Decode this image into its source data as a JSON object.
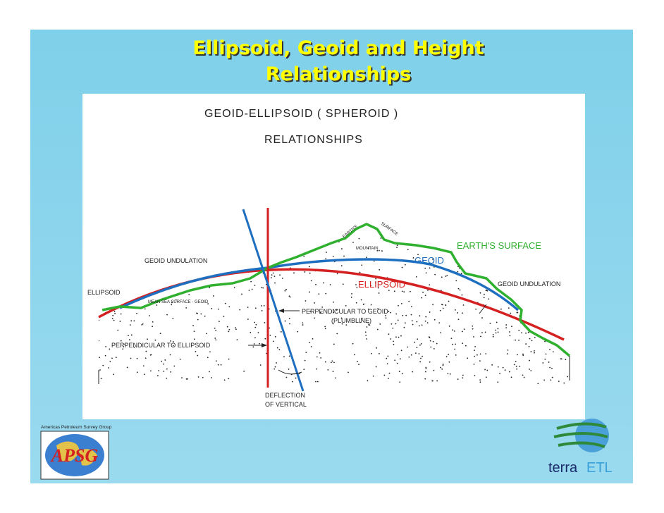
{
  "slide": {
    "title": [
      "Ellipsoid, Geoid and Height",
      "Relationships"
    ]
  },
  "diagram": {
    "heading": [
      "GEOID-ELLIPSOID ( SPHEROID )",
      "RELATIONSHIPS"
    ],
    "labels": {
      "earth_surface": "EARTH'S SURFACE",
      "geoid": "GEOID",
      "ellipsoid": "ELLIPSOID",
      "geoid_undulation_left": "GEOID UNDULATION",
      "geoid_undulation_right": "GEOID UNDULATION",
      "ellipsoid_left": "ELLIPSOID",
      "mean_sea_surface": "MEAN SEA SURFACE - GEOID",
      "perpendicular_geoid": "PERPENDICULAR TO GEOID",
      "plumbline": "(PLUMBLINE)",
      "perpendicular_ellipsoid": "PERPENDICULAR TO ELLIPSOID",
      "deflection": [
        "DEFLECTION",
        "OF VERTICAL"
      ],
      "mountain": "MOUNTAIN",
      "earths": "EARTH'S",
      "surface": "SURFACE"
    }
  },
  "logos": {
    "apsg_name": "Americas Petroleum Survey Group",
    "apsg": "APSG",
    "terra": "terra",
    "etl": "ETL"
  }
}
